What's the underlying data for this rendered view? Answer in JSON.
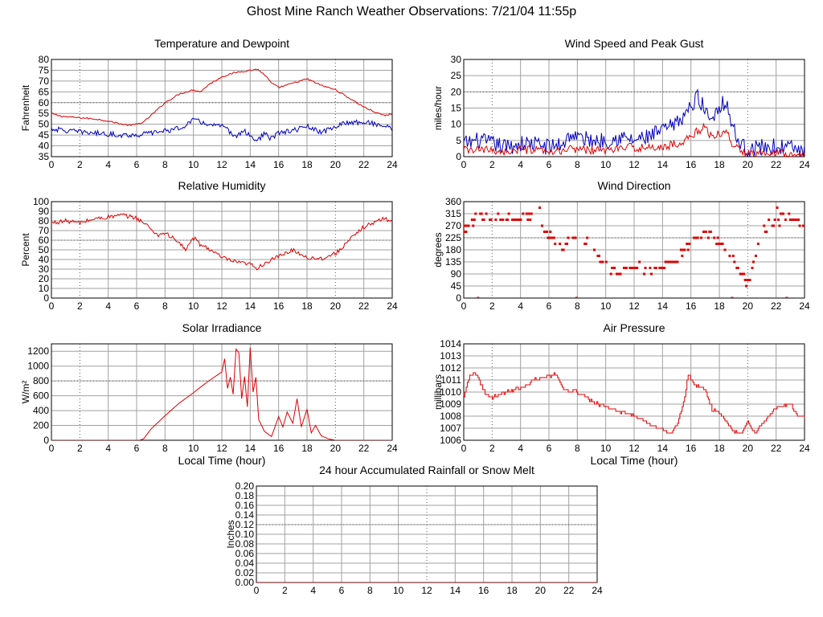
{
  "page": {
    "title": "Ghost Mine Ranch Weather Observations: 7/21/04 11:55p"
  },
  "colors": {
    "red": "#e00000",
    "blue": "#0000c0",
    "grid": "#a0a0a0",
    "dashed": "#555555"
  },
  "chart_data": [
    {
      "id": "temperature",
      "type": "line",
      "title": "Temperature and Dewpoint",
      "ylabel": "Fahrenheit",
      "xlabel": "",
      "xlim": [
        0,
        24
      ],
      "ylim": [
        35,
        80
      ],
      "xticks": [
        0,
        2,
        4,
        6,
        8,
        10,
        12,
        14,
        16,
        18,
        20,
        22,
        24
      ],
      "yticks": [
        35,
        40,
        45,
        50,
        55,
        60,
        65,
        70,
        75,
        80
      ],
      "grid": true,
      "series": [
        {
          "color": "#e00000",
          "noise": 0.35,
          "x": [
            0,
            0.5,
            1,
            2,
            3,
            4,
            5,
            5.5,
            6,
            6.5,
            7,
            7.5,
            8,
            9,
            10,
            10.5,
            11,
            12,
            13,
            14,
            14.5,
            15,
            15.5,
            16,
            17,
            18,
            19,
            20,
            21,
            22,
            23,
            23.5,
            24
          ],
          "y": [
            55,
            54,
            53.5,
            53,
            52.5,
            51.5,
            50,
            49.5,
            50,
            51,
            54,
            57,
            60,
            64,
            66,
            65,
            68,
            72,
            74,
            75,
            75.5,
            73,
            69,
            67,
            69,
            71,
            68,
            66,
            62,
            58,
            55,
            54,
            55
          ]
        },
        {
          "color": "#0000c0",
          "noise": 1.2,
          "x": [
            0,
            1,
            2,
            3,
            4,
            5,
            6,
            7,
            8,
            9,
            9.5,
            10,
            11,
            12,
            12.5,
            13,
            13.5,
            14,
            14.5,
            15,
            15.5,
            16,
            17,
            18,
            19,
            20,
            21,
            22,
            23,
            24
          ],
          "y": [
            48,
            47,
            46.5,
            46,
            45.5,
            45,
            45,
            46,
            47,
            48,
            50,
            52,
            50,
            49,
            47,
            44,
            47,
            45,
            42,
            46,
            43,
            46,
            47,
            49,
            46,
            49,
            51,
            51,
            50,
            48
          ]
        }
      ]
    },
    {
      "id": "wind-speed",
      "type": "line",
      "title": "Wind Speed and Peak Gust",
      "ylabel": "miles/hour",
      "xlabel": "",
      "xlim": [
        0,
        24
      ],
      "ylim": [
        0,
        30
      ],
      "xticks": [
        0,
        2,
        4,
        6,
        8,
        10,
        12,
        14,
        16,
        18,
        20,
        22,
        24
      ],
      "yticks": [
        0,
        5,
        10,
        15,
        20,
        25,
        30
      ],
      "grid": true,
      "series": [
        {
          "color": "#0000c0",
          "noise": 2.6,
          "x": [
            0,
            1,
            2,
            3,
            4,
            5,
            6,
            7,
            7.5,
            8,
            9,
            10,
            11,
            12,
            13,
            14,
            15,
            15.5,
            16,
            16.5,
            17,
            17.5,
            18,
            18.5,
            19,
            19.5,
            20,
            21,
            22,
            23,
            24
          ],
          "y": [
            4,
            5,
            4,
            3,
            4,
            4,
            3,
            4,
            7,
            6,
            5,
            5,
            6,
            5,
            6,
            8,
            10,
            13,
            15,
            19,
            14,
            12,
            16,
            17,
            8,
            4,
            2,
            3,
            3,
            3,
            1
          ]
        },
        {
          "color": "#e00000",
          "noise": 1.3,
          "x": [
            0,
            1,
            2,
            3,
            4,
            5,
            6,
            7,
            8,
            9,
            10,
            11,
            12,
            13,
            14,
            15,
            16,
            16.5,
            17,
            17.5,
            18,
            18.5,
            19,
            20,
            21,
            22,
            23,
            24
          ],
          "y": [
            2,
            2,
            2,
            1.5,
            2,
            2,
            1,
            2,
            2.5,
            2,
            2,
            2.5,
            3,
            2.5,
            3,
            4,
            6,
            8,
            9,
            6,
            7,
            8,
            3,
            1,
            1.5,
            1.5,
            1,
            0.5
          ]
        }
      ]
    },
    {
      "id": "humidity",
      "type": "line",
      "title": "Relative Humidity",
      "ylabel": "Percent",
      "xlabel": "",
      "xlim": [
        0,
        24
      ],
      "ylim": [
        0,
        100
      ],
      "xticks": [
        0,
        2,
        4,
        6,
        8,
        10,
        12,
        14,
        16,
        18,
        20,
        22,
        24
      ],
      "yticks": [
        0,
        10,
        20,
        30,
        40,
        50,
        60,
        70,
        80,
        90,
        100
      ],
      "grid": true,
      "series": [
        {
          "color": "#e00000",
          "noise": 2.2,
          "x": [
            0,
            1,
            2,
            3,
            4,
            5,
            6,
            6.5,
            7,
            7.5,
            8,
            9,
            9.5,
            10,
            10.5,
            11,
            12,
            13,
            14,
            14.5,
            15,
            16,
            17,
            18,
            19,
            20,
            21,
            22,
            23,
            23.5,
            24
          ],
          "y": [
            78,
            80,
            78,
            82,
            84,
            86,
            83,
            78,
            72,
            65,
            68,
            57,
            50,
            63,
            55,
            52,
            42,
            37,
            35,
            31,
            36,
            43,
            50,
            42,
            41,
            46,
            60,
            74,
            80,
            83,
            78
          ]
        }
      ]
    },
    {
      "id": "wind-direction",
      "type": "scatter",
      "title": "Wind Direction",
      "ylabel": "degrees",
      "xlabel": "",
      "xlim": [
        0,
        24
      ],
      "ylim": [
        0,
        360
      ],
      "xticks": [
        0,
        2,
        4,
        6,
        8,
        10,
        12,
        14,
        16,
        18,
        20,
        22,
        24
      ],
      "yticks": [
        0,
        45,
        90,
        135,
        180,
        225,
        270,
        315,
        360
      ],
      "grid": true,
      "series": [
        {
          "color": "#e00000",
          "noise": 14,
          "x": [
            0,
            1,
            2,
            3,
            4,
            5,
            6,
            7,
            8,
            9,
            10,
            11,
            12,
            13,
            14,
            15,
            16,
            17,
            18,
            19,
            20,
            21,
            22,
            23,
            24
          ],
          "y": [
            250,
            310,
            300,
            290,
            300,
            300,
            240,
            190,
            230,
            200,
            120,
            90,
            120,
            100,
            110,
            150,
            210,
            240,
            210,
            150,
            60,
            250,
            290,
            300,
            260
          ]
        }
      ]
    },
    {
      "id": "solar",
      "type": "line",
      "title": "Solar Irradiance",
      "ylabel": "W/m²",
      "xlabel": "Local Time (hour)",
      "xlim": [
        0,
        24
      ],
      "ylim": [
        0,
        1300
      ],
      "xticks": [
        0,
        2,
        4,
        6,
        8,
        10,
        12,
        14,
        16,
        18,
        20,
        22,
        24
      ],
      "yticks": [
        0,
        200,
        400,
        600,
        800,
        1000,
        1200
      ],
      "grid": true,
      "series": [
        {
          "color": "#e00000",
          "noise": 0,
          "x": [
            0,
            6.2,
            6.5,
            7,
            8,
            9,
            10,
            11,
            12,
            12.2,
            12.4,
            12.6,
            12.8,
            13,
            13.2,
            13.4,
            13.6,
            13.8,
            14,
            14.2,
            14.4,
            14.6,
            15,
            15.5,
            16,
            16.3,
            16.6,
            17,
            17.3,
            17.6,
            18,
            18.3,
            18.6,
            19,
            19.5,
            20,
            24
          ],
          "y": [
            0,
            0,
            20,
            150,
            330,
            500,
            640,
            790,
            920,
            1100,
            700,
            850,
            620,
            1230,
            1180,
            560,
            860,
            450,
            1250,
            650,
            850,
            280,
            120,
            50,
            320,
            180,
            380,
            230,
            560,
            180,
            420,
            100,
            200,
            60,
            20,
            0,
            0
          ]
        }
      ]
    },
    {
      "id": "pressure",
      "type": "line",
      "title": "Air Pressure",
      "ylabel": "millibars",
      "xlabel": "Local Time (hour)",
      "xlim": [
        0,
        24
      ],
      "ylim": [
        1006,
        1014
      ],
      "xticks": [
        0,
        2,
        4,
        6,
        8,
        10,
        12,
        14,
        16,
        18,
        20,
        22,
        24
      ],
      "yticks": [
        1006,
        1007,
        1008,
        1009,
        1010,
        1011,
        1012,
        1013,
        1014
      ],
      "grid": true,
      "series": [
        {
          "color": "#e00000",
          "noise": 0.12,
          "step": true,
          "x": [
            0,
            0.3,
            0.6,
            1,
            1.5,
            2,
            3,
            4,
            5,
            6,
            6.5,
            7,
            8,
            9,
            10,
            11,
            12,
            13,
            14,
            14.5,
            15,
            15.5,
            15.8,
            16,
            16.5,
            17,
            17.5,
            18,
            19,
            19.5,
            20,
            20.5,
            21,
            22,
            23,
            23.5,
            24
          ],
          "y": [
            1009.5,
            1011,
            1011.6,
            1011.2,
            1009.8,
            1009.5,
            1010,
            1010.3,
            1011,
            1011.3,
            1011.5,
            1010.2,
            1010,
            1009.2,
            1008.8,
            1008.4,
            1008,
            1007.4,
            1006.8,
            1006.6,
            1007.2,
            1009.2,
            1011.5,
            1011,
            1010.4,
            1010.2,
            1008.5,
            1008.2,
            1006.8,
            1006.5,
            1007.6,
            1006.5,
            1007.4,
            1008.7,
            1009,
            1008,
            1007.9
          ]
        }
      ]
    },
    {
      "id": "rainfall",
      "type": "line",
      "title": "24 hour Accumulated Rainfall or Snow Melt",
      "ylabel": "Inches",
      "xlabel": "",
      "xlim": [
        0,
        24
      ],
      "ylim": [
        0,
        0.2
      ],
      "xticks": [
        0,
        2,
        4,
        6,
        8,
        10,
        12,
        14,
        16,
        18,
        20,
        22,
        24
      ],
      "yticks": [
        "0.00",
        "0.02",
        "0.04",
        "0.06",
        "0.08",
        "0.10",
        "0.12",
        "0.14",
        "0.16",
        "0.18",
        "0.20"
      ],
      "grid": true,
      "series": [
        {
          "color": "#e00000",
          "noise": 0,
          "x": [
            0,
            24
          ],
          "y": [
            0,
            0
          ]
        }
      ]
    }
  ]
}
